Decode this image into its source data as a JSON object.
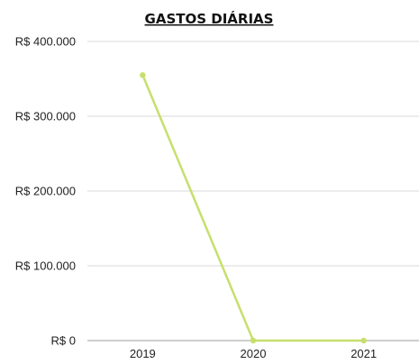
{
  "chart_data": {
    "type": "line",
    "title": "GASTOS DIÁRIAS",
    "xlabel": "",
    "ylabel": "",
    "categories": [
      "2019",
      "2020",
      "2021"
    ],
    "series": [
      {
        "values": [
          355000,
          0,
          0
        ],
        "color": "#c6df6b"
      }
    ],
    "ylim": [
      0,
      400000
    ],
    "y_ticks": [
      0,
      100000,
      200000,
      300000,
      400000
    ],
    "y_tick_labels": [
      "R$ 0",
      "R$ 100.000",
      "R$ 200.000",
      "R$ 300.000",
      "R$ 400.000"
    ],
    "grid": true,
    "legend": "none"
  }
}
